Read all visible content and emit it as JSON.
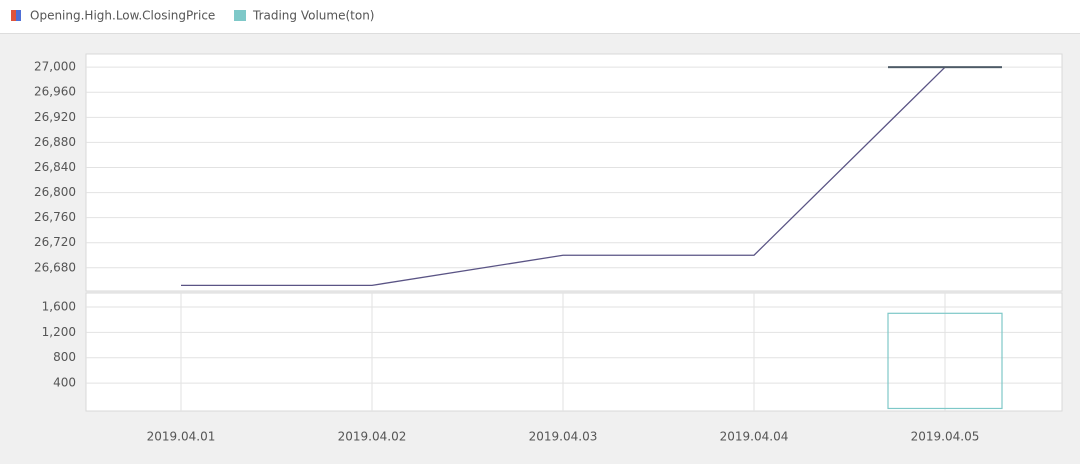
{
  "chart_data": [
    {
      "type": "line",
      "series": [
        {
          "name": "Opening.High.Low.ClosingPrice",
          "color": "#5a5485",
          "values": [
            26652,
            26652,
            26700,
            26700,
            27000
          ],
          "open": [
            null,
            null,
            null,
            null,
            27000
          ],
          "high": [
            null,
            null,
            null,
            null,
            27000
          ],
          "low": [
            null,
            null,
            null,
            null,
            27000
          ],
          "close": [
            null,
            null,
            null,
            null,
            27000
          ],
          "candle_color": "#4d5a66",
          "legend_colors": [
            "#e0533c",
            "#4f6fd6"
          ]
        }
      ],
      "ylim": [
        26643,
        27021
      ],
      "yticks": [
        {
          "value": 26680,
          "label": "26,680"
        },
        {
          "value": 26720,
          "label": "26,720"
        },
        {
          "value": 26760,
          "label": "26,760"
        },
        {
          "value": 26800,
          "label": "26,800"
        },
        {
          "value": 26840,
          "label": "26,840"
        },
        {
          "value": 26880,
          "label": "26,880"
        },
        {
          "value": 26920,
          "label": "26,920"
        },
        {
          "value": 26960,
          "label": "26,960"
        },
        {
          "value": 27000,
          "label": "27,000"
        }
      ],
      "grid": true
    },
    {
      "type": "bar",
      "categories": [
        "2019.04.01",
        "2019.04.02",
        "2019.04.03",
        "2019.04.04",
        "2019.04.05"
      ],
      "series": [
        {
          "name": "Trading Volume(ton)",
          "color": "#7ec8c8",
          "values": [
            null,
            null,
            null,
            null,
            1500
          ]
        }
      ],
      "ylim": [
        -40,
        1820
      ],
      "yticks": [
        400,
        800,
        {
          "value": 1200,
          "label": "1,200"
        },
        {
          "value": 1600,
          "label": "1,600"
        }
      ],
      "grid": true
    }
  ]
}
